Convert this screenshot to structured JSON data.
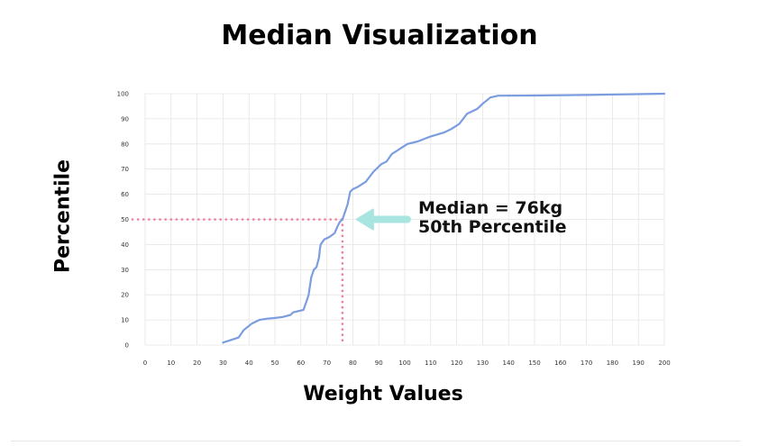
{
  "chart_data": {
    "type": "line",
    "title": "Median Visualization",
    "xlabel": "Weight Values",
    "ylabel": "Percentile",
    "xlim": [
      0,
      200
    ],
    "ylim": [
      0,
      100
    ],
    "x_ticks": [
      0,
      10,
      20,
      30,
      40,
      50,
      60,
      70,
      80,
      90,
      100,
      110,
      120,
      130,
      140,
      150,
      160,
      170,
      180,
      190,
      200
    ],
    "y_ticks": [
      0,
      10,
      20,
      30,
      40,
      50,
      60,
      70,
      80,
      90,
      100
    ],
    "grid": true,
    "series": [
      {
        "color": "#7b9de0",
        "points": [
          [
            30,
            1
          ],
          [
            33,
            2
          ],
          [
            36,
            3
          ],
          [
            38,
            6
          ],
          [
            41,
            8.5
          ],
          [
            44,
            10
          ],
          [
            47,
            10.5
          ],
          [
            50,
            10.8
          ],
          [
            53,
            11.2
          ],
          [
            56,
            12
          ],
          [
            57,
            13
          ],
          [
            59,
            13.5
          ],
          [
            61,
            14
          ],
          [
            62,
            17
          ],
          [
            63,
            20
          ],
          [
            64,
            27
          ],
          [
            65,
            30
          ],
          [
            66,
            31
          ],
          [
            67,
            35
          ],
          [
            67.3,
            38
          ],
          [
            67.6,
            40
          ],
          [
            69,
            42
          ],
          [
            71,
            43
          ],
          [
            73,
            44.5
          ],
          [
            74,
            47
          ],
          [
            75,
            49
          ],
          [
            76,
            50
          ],
          [
            77,
            53
          ],
          [
            78,
            56
          ],
          [
            79,
            61
          ],
          [
            80,
            62
          ],
          [
            82,
            63
          ],
          [
            85,
            65
          ],
          [
            88,
            69
          ],
          [
            91,
            72
          ],
          [
            93,
            73
          ],
          [
            95,
            76
          ],
          [
            98,
            78
          ],
          [
            101,
            80
          ],
          [
            105,
            81
          ],
          [
            110,
            83
          ],
          [
            115,
            84.5
          ],
          [
            118,
            86
          ],
          [
            121,
            88
          ],
          [
            124,
            92
          ],
          [
            128,
            94
          ],
          [
            130,
            96
          ],
          [
            133,
            98.5
          ],
          [
            136,
            99.2
          ],
          [
            150,
            99.3
          ],
          [
            170,
            99.5
          ],
          [
            200,
            100
          ]
        ]
      }
    ],
    "median": {
      "x": 76,
      "y": 50,
      "guide_color": "#ee7f9d",
      "arrow_color": "#a8e4e0",
      "annotation_line1": "Median = 76kg",
      "annotation_line2": "50th Percentile"
    }
  }
}
